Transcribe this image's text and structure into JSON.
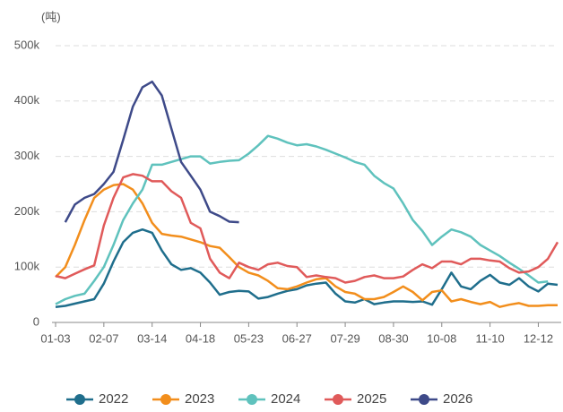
{
  "chart_data": {
    "type": "line",
    "y_unit_label": "(吨)",
    "categories": [
      "01-03",
      null,
      null,
      null,
      null,
      "02-07",
      null,
      null,
      null,
      null,
      "03-14",
      null,
      null,
      null,
      null,
      "04-18",
      null,
      null,
      null,
      null,
      "05-23",
      null,
      null,
      null,
      null,
      "06-27",
      null,
      null,
      null,
      null,
      "07-29",
      null,
      null,
      null,
      null,
      "08-30",
      null,
      null,
      null,
      null,
      "10-08",
      null,
      null,
      null,
      null,
      "11-10",
      null,
      null,
      null,
      null,
      "12-12",
      null,
      null
    ],
    "series": [
      {
        "name": "2022",
        "color": "#1f6e8c",
        "values": [
          28,
          30,
          34,
          38,
          42,
          70,
          110,
          145,
          162,
          168,
          162,
          130,
          105,
          95,
          98,
          90,
          72,
          50,
          55,
          57,
          56,
          43,
          46,
          52,
          57,
          60,
          67,
          70,
          72,
          52,
          38,
          36,
          42,
          33,
          36,
          38,
          38,
          37,
          38,
          32,
          60,
          90,
          65,
          60,
          75,
          86,
          72,
          68,
          80,
          65,
          56,
          70,
          68
        ]
      },
      {
        "name": "2023",
        "color": "#f28e1c",
        "values": [
          82,
          100,
          140,
          185,
          225,
          240,
          248,
          250,
          240,
          215,
          180,
          160,
          157,
          155,
          150,
          145,
          138,
          135,
          118,
          100,
          90,
          85,
          75,
          62,
          60,
          65,
          72,
          78,
          80,
          65,
          55,
          52,
          42,
          42,
          46,
          55,
          65,
          55,
          40,
          55,
          58,
          38,
          42,
          37,
          33,
          37,
          28,
          32,
          35,
          30,
          30,
          31,
          31
        ]
      },
      {
        "name": "2024",
        "color": "#5fc2bd",
        "values": [
          33,
          42,
          48,
          52,
          75,
          100,
          140,
          185,
          215,
          240,
          285,
          285,
          290,
          295,
          300,
          300,
          287,
          290,
          292,
          293,
          305,
          320,
          337,
          332,
          325,
          320,
          322,
          318,
          312,
          305,
          298,
          290,
          285,
          265,
          252,
          242,
          215,
          185,
          165,
          140,
          155,
          168,
          163,
          155,
          140,
          130,
          120,
          108,
          97,
          85,
          72,
          74,
          null
        ]
      },
      {
        "name": "2025",
        "color": "#e05a5a",
        "values": [
          84,
          80,
          88,
          96,
          103,
          175,
          225,
          262,
          268,
          265,
          255,
          255,
          237,
          225,
          180,
          170,
          115,
          90,
          80,
          108,
          100,
          95,
          105,
          108,
          102,
          100,
          82,
          85,
          82,
          80,
          72,
          75,
          82,
          85,
          80,
          80,
          83,
          95,
          105,
          98,
          110,
          110,
          105,
          115,
          115,
          112,
          110,
          98,
          90,
          92,
          100,
          115,
          145
        ]
      },
      {
        "name": "2026",
        "color": "#3e4a89",
        "values": [
          null,
          181,
          213,
          225,
          232,
          250,
          272,
          330,
          390,
          425,
          435,
          410,
          350,
          290,
          265,
          240,
          200,
          192,
          182,
          181,
          null,
          null,
          null,
          null,
          null,
          null,
          null,
          null,
          null,
          null,
          null,
          null,
          null,
          null,
          null,
          null,
          null,
          null,
          null,
          null,
          null,
          null,
          null,
          null,
          null,
          null,
          null,
          null,
          null,
          null,
          null,
          null,
          null
        ]
      }
    ],
    "ylim": [
      0,
      500
    ],
    "yticks": [
      0,
      {
        "value": 100,
        "label": "100k"
      },
      {
        "value": 200,
        "label": "200k"
      },
      {
        "value": 300,
        "label": "300k"
      },
      {
        "value": 400,
        "label": "400k"
      },
      {
        "value": 500,
        "label": "500k"
      }
    ],
    "grid": true
  }
}
